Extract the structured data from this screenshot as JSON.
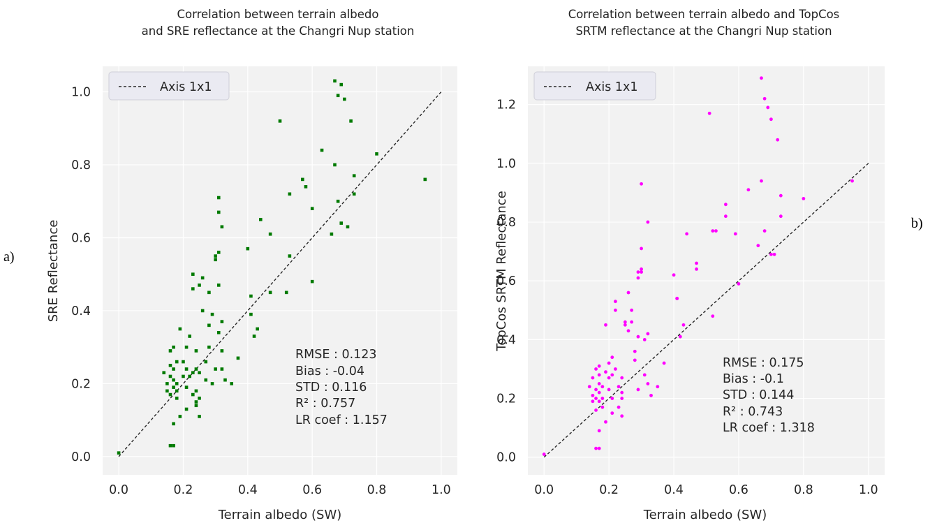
{
  "figure": {
    "panel_letters": [
      "a)",
      "b)"
    ]
  },
  "chart_data": [
    {
      "type": "scatter",
      "title_lines": [
        "Correlation between terrain albedo",
        "and SRE reflectance at the Changri Nup station"
      ],
      "xlabel": "Terrain albedo (SW)",
      "ylabel": "SRE Reflectance",
      "xlim": [
        -0.05,
        1.05
      ],
      "ylim": [
        -0.05,
        1.07
      ],
      "xticks": [
        0.0,
        0.2,
        0.4,
        0.6,
        0.8,
        1.0
      ],
      "yticks": [
        0.0,
        0.2,
        0.4,
        0.6,
        0.8,
        1.0
      ],
      "xtick_labels": [
        "0.0",
        "0.2",
        "0.4",
        "0.6",
        "0.8",
        "1.0"
      ],
      "ytick_labels": [
        "0.0",
        "0.2",
        "0.4",
        "0.6",
        "0.8",
        "1.0"
      ],
      "grid": true,
      "legend": {
        "placement": "top-left",
        "entries": [
          "Axis 1x1"
        ]
      },
      "point_color": "#007a00",
      "marker": "square",
      "reference_line": {
        "from": [
          0,
          0
        ],
        "to": [
          1,
          1
        ],
        "style": "dashed",
        "color": "#262626"
      },
      "stats": [
        "RMSE : 0.123",
        "Bias : -0.04",
        "STD : 0.116",
        "R² : 0.757",
        "LR coef : 1.157"
      ],
      "points": [
        [
          0.0,
          0.01
        ],
        [
          0.14,
          0.23
        ],
        [
          0.15,
          0.18
        ],
        [
          0.15,
          0.2
        ],
        [
          0.16,
          0.17
        ],
        [
          0.16,
          0.22
        ],
        [
          0.16,
          0.25
        ],
        [
          0.16,
          0.29
        ],
        [
          0.16,
          0.03
        ],
        [
          0.17,
          0.03
        ],
        [
          0.17,
          0.09
        ],
        [
          0.17,
          0.19
        ],
        [
          0.17,
          0.21
        ],
        [
          0.17,
          0.24
        ],
        [
          0.17,
          0.3
        ],
        [
          0.18,
          0.16
        ],
        [
          0.18,
          0.2
        ],
        [
          0.18,
          0.18
        ],
        [
          0.18,
          0.26
        ],
        [
          0.19,
          0.11
        ],
        [
          0.19,
          0.35
        ],
        [
          0.2,
          0.22
        ],
        [
          0.2,
          0.26
        ],
        [
          0.21,
          0.13
        ],
        [
          0.21,
          0.19
        ],
        [
          0.21,
          0.24
        ],
        [
          0.21,
          0.3
        ],
        [
          0.22,
          0.33
        ],
        [
          0.22,
          0.22
        ],
        [
          0.23,
          0.17
        ],
        [
          0.23,
          0.23
        ],
        [
          0.23,
          0.5
        ],
        [
          0.23,
          0.46
        ],
        [
          0.24,
          0.15
        ],
        [
          0.24,
          0.14
        ],
        [
          0.24,
          0.18
        ],
        [
          0.24,
          0.24
        ],
        [
          0.24,
          0.29
        ],
        [
          0.25,
          0.11
        ],
        [
          0.25,
          0.16
        ],
        [
          0.25,
          0.23
        ],
        [
          0.25,
          0.47
        ],
        [
          0.26,
          0.4
        ],
        [
          0.26,
          0.49
        ],
        [
          0.27,
          0.26
        ],
        [
          0.27,
          0.21
        ],
        [
          0.28,
          0.3
        ],
        [
          0.28,
          0.45
        ],
        [
          0.28,
          0.36
        ],
        [
          0.29,
          0.39
        ],
        [
          0.29,
          0.2
        ],
        [
          0.3,
          0.24
        ],
        [
          0.3,
          0.54
        ],
        [
          0.3,
          0.55
        ],
        [
          0.31,
          0.71
        ],
        [
          0.31,
          0.67
        ],
        [
          0.31,
          0.56
        ],
        [
          0.31,
          0.47
        ],
        [
          0.31,
          0.34
        ],
        [
          0.32,
          0.63
        ],
        [
          0.32,
          0.37
        ],
        [
          0.32,
          0.29
        ],
        [
          0.32,
          0.24
        ],
        [
          0.33,
          0.21
        ],
        [
          0.35,
          0.2
        ],
        [
          0.37,
          0.27
        ],
        [
          0.4,
          0.57
        ],
        [
          0.41,
          0.44
        ],
        [
          0.41,
          0.39
        ],
        [
          0.42,
          0.33
        ],
        [
          0.43,
          0.35
        ],
        [
          0.44,
          0.65
        ],
        [
          0.47,
          0.61
        ],
        [
          0.47,
          0.45
        ],
        [
          0.5,
          0.92
        ],
        [
          0.52,
          0.45
        ],
        [
          0.53,
          0.55
        ],
        [
          0.53,
          0.72
        ],
        [
          0.57,
          0.76
        ],
        [
          0.58,
          0.74
        ],
        [
          0.6,
          0.68
        ],
        [
          0.6,
          0.48
        ],
        [
          0.63,
          0.84
        ],
        [
          0.66,
          0.61
        ],
        [
          0.67,
          0.8
        ],
        [
          0.67,
          1.03
        ],
        [
          0.68,
          0.7
        ],
        [
          0.68,
          0.99
        ],
        [
          0.69,
          1.02
        ],
        [
          0.69,
          0.64
        ],
        [
          0.7,
          0.98
        ],
        [
          0.71,
          0.63
        ],
        [
          0.72,
          0.92
        ],
        [
          0.73,
          0.77
        ],
        [
          0.73,
          0.72
        ],
        [
          0.8,
          0.83
        ],
        [
          0.95,
          0.76
        ]
      ]
    },
    {
      "type": "scatter",
      "title_lines": [
        "Correlation between terrain albedo and TopCos",
        "SRTM reflectance at the Changri Nup station"
      ],
      "xlabel": "Terrain albedo (SW)",
      "ylabel": "TopCos SRTM Reflectance",
      "xlim": [
        -0.05,
        1.05
      ],
      "ylim": [
        -0.06,
        1.33
      ],
      "xticks": [
        0.0,
        0.2,
        0.4,
        0.6,
        0.8,
        1.0
      ],
      "yticks": [
        0.0,
        0.2,
        0.4,
        0.6,
        0.8,
        1.0,
        1.2
      ],
      "xtick_labels": [
        "0.0",
        "0.2",
        "0.4",
        "0.6",
        "0.8",
        "1.0"
      ],
      "ytick_labels": [
        "0.0",
        "0.2",
        "0.4",
        "0.6",
        "0.8",
        "1.0",
        "1.2"
      ],
      "grid": true,
      "legend": {
        "placement": "top-left",
        "entries": [
          "Axis 1x1"
        ]
      },
      "point_color": "#ff00ff",
      "marker": "circle",
      "reference_line": {
        "from": [
          0,
          0
        ],
        "to": [
          1,
          1
        ],
        "style": "dashed",
        "color": "#262626"
      },
      "stats": [
        "RMSE : 0.175",
        "Bias : -0.1",
        "STD : 0.144",
        "R² : 0.743",
        "LR coef : 1.318"
      ],
      "points": [
        [
          0.0,
          0.01
        ],
        [
          0.14,
          0.24
        ],
        [
          0.15,
          0.19
        ],
        [
          0.15,
          0.21
        ],
        [
          0.15,
          0.27
        ],
        [
          0.16,
          0.2
        ],
        [
          0.16,
          0.23
        ],
        [
          0.16,
          0.3
        ],
        [
          0.16,
          0.16
        ],
        [
          0.16,
          0.03
        ],
        [
          0.17,
          0.03
        ],
        [
          0.17,
          0.09
        ],
        [
          0.17,
          0.19
        ],
        [
          0.17,
          0.22
        ],
        [
          0.17,
          0.25
        ],
        [
          0.17,
          0.28
        ],
        [
          0.17,
          0.31
        ],
        [
          0.18,
          0.2
        ],
        [
          0.18,
          0.17
        ],
        [
          0.18,
          0.24
        ],
        [
          0.19,
          0.12
        ],
        [
          0.19,
          0.45
        ],
        [
          0.19,
          0.29
        ],
        [
          0.2,
          0.32
        ],
        [
          0.2,
          0.27
        ],
        [
          0.2,
          0.23
        ],
        [
          0.21,
          0.15
        ],
        [
          0.21,
          0.28
        ],
        [
          0.21,
          0.34
        ],
        [
          0.21,
          0.2
        ],
        [
          0.22,
          0.53
        ],
        [
          0.22,
          0.5
        ],
        [
          0.22,
          0.3
        ],
        [
          0.23,
          0.24
        ],
        [
          0.23,
          0.17
        ],
        [
          0.24,
          0.22
        ],
        [
          0.24,
          0.2
        ],
        [
          0.24,
          0.14
        ],
        [
          0.24,
          0.27
        ],
        [
          0.25,
          0.46
        ],
        [
          0.25,
          0.45
        ],
        [
          0.26,
          0.56
        ],
        [
          0.26,
          0.43
        ],
        [
          0.27,
          0.5
        ],
        [
          0.27,
          0.46
        ],
        [
          0.28,
          0.33
        ],
        [
          0.28,
          0.36
        ],
        [
          0.29,
          0.61
        ],
        [
          0.29,
          0.63
        ],
        [
          0.29,
          0.41
        ],
        [
          0.29,
          0.23
        ],
        [
          0.3,
          0.71
        ],
        [
          0.3,
          0.64
        ],
        [
          0.3,
          0.63
        ],
        [
          0.3,
          0.93
        ],
        [
          0.31,
          0.4
        ],
        [
          0.31,
          0.28
        ],
        [
          0.32,
          0.8
        ],
        [
          0.32,
          0.42
        ],
        [
          0.32,
          0.25
        ],
        [
          0.33,
          0.21
        ],
        [
          0.35,
          0.24
        ],
        [
          0.37,
          0.32
        ],
        [
          0.4,
          0.62
        ],
        [
          0.41,
          0.54
        ],
        [
          0.41,
          0.54
        ],
        [
          0.42,
          0.41
        ],
        [
          0.43,
          0.45
        ],
        [
          0.44,
          0.76
        ],
        [
          0.47,
          0.64
        ],
        [
          0.47,
          0.66
        ],
        [
          0.51,
          1.17
        ],
        [
          0.52,
          0.48
        ],
        [
          0.52,
          0.77
        ],
        [
          0.53,
          0.77
        ],
        [
          0.56,
          0.82
        ],
        [
          0.56,
          0.86
        ],
        [
          0.59,
          0.76
        ],
        [
          0.6,
          0.59
        ],
        [
          0.63,
          0.91
        ],
        [
          0.66,
          0.72
        ],
        [
          0.67,
          0.94
        ],
        [
          0.67,
          1.29
        ],
        [
          0.68,
          1.22
        ],
        [
          0.68,
          0.77
        ],
        [
          0.69,
          1.19
        ],
        [
          0.7,
          1.15
        ],
        [
          0.7,
          0.69
        ],
        [
          0.71,
          0.69
        ],
        [
          0.72,
          1.08
        ],
        [
          0.73,
          0.89
        ],
        [
          0.73,
          0.82
        ],
        [
          0.8,
          0.88
        ],
        [
          0.95,
          0.94
        ]
      ]
    }
  ]
}
